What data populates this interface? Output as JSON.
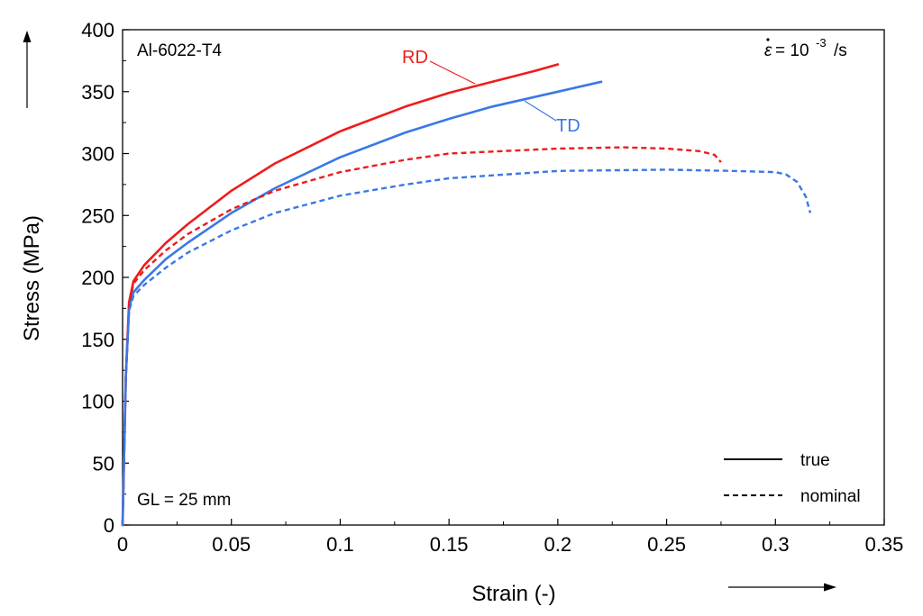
{
  "chart_data": {
    "type": "line",
    "title": "",
    "xlabel": "Strain (-)",
    "ylabel": "Stress  (MPa)",
    "xlim": [
      0,
      0.35
    ],
    "ylim": [
      0,
      400
    ],
    "xticks": [
      0,
      0.05,
      0.1,
      0.15,
      0.2,
      0.25,
      0.3,
      0.35
    ],
    "xtick_labels": [
      "0",
      "0.05",
      "0.1",
      "0.15",
      "0.2",
      "0.25",
      "0.3",
      "0.35"
    ],
    "yticks": [
      0,
      50,
      100,
      150,
      200,
      250,
      300,
      350,
      400
    ],
    "ytick_labels": [
      "0",
      "50",
      "100",
      "150",
      "200",
      "250",
      "300",
      "350",
      "400"
    ],
    "grid": false,
    "annotations": {
      "material": "Al-6022-T4",
      "strain_rate_symbol": "ε",
      "strain_rate_value": "= 10",
      "strain_rate_exponent": "-3",
      "strain_rate_unit": "/s",
      "gauge_length": "GL = 25 mm"
    },
    "legend": {
      "position": "bottom-right",
      "entries": [
        {
          "label": "true",
          "style": "solid"
        },
        {
          "label": "nominal",
          "style": "dashed"
        }
      ]
    },
    "series": [
      {
        "name": "RD true",
        "label": "RD",
        "color": "#ee1c1c",
        "style": "solid",
        "x": [
          0,
          0.0015,
          0.003,
          0.005,
          0.01,
          0.02,
          0.03,
          0.05,
          0.07,
          0.1,
          0.13,
          0.15,
          0.17,
          0.19,
          0.2
        ],
        "y": [
          0,
          120,
          180,
          197,
          210,
          228,
          243,
          270,
          292,
          318,
          338,
          349,
          358,
          367,
          372
        ]
      },
      {
        "name": "TD true",
        "label": "TD",
        "color": "#3a78e6",
        "style": "solid",
        "x": [
          0,
          0.0015,
          0.003,
          0.005,
          0.01,
          0.02,
          0.03,
          0.05,
          0.07,
          0.1,
          0.13,
          0.15,
          0.17,
          0.2,
          0.22
        ],
        "y": [
          0,
          120,
          175,
          188,
          198,
          215,
          228,
          252,
          272,
          297,
          317,
          328,
          338,
          350,
          358
        ]
      },
      {
        "name": "RD nominal",
        "color": "#ee1c1c",
        "style": "dashed",
        "x": [
          0,
          0.0015,
          0.003,
          0.005,
          0.01,
          0.02,
          0.03,
          0.05,
          0.07,
          0.1,
          0.13,
          0.15,
          0.2,
          0.23,
          0.25,
          0.265,
          0.272,
          0.275
        ],
        "y": [
          0,
          120,
          178,
          195,
          206,
          222,
          235,
          255,
          270,
          285,
          295,
          300,
          304,
          305,
          304,
          302,
          299,
          293
        ]
      },
      {
        "name": "TD nominal",
        "color": "#3a78e6",
        "style": "dashed",
        "x": [
          0,
          0.0015,
          0.003,
          0.005,
          0.01,
          0.02,
          0.03,
          0.05,
          0.07,
          0.1,
          0.13,
          0.15,
          0.2,
          0.25,
          0.28,
          0.3,
          0.305,
          0.31,
          0.314,
          0.316
        ],
        "y": [
          0,
          120,
          173,
          185,
          194,
          208,
          220,
          238,
          252,
          266,
          275,
          280,
          286,
          287,
          286,
          285,
          283,
          277,
          265,
          252
        ]
      }
    ]
  }
}
